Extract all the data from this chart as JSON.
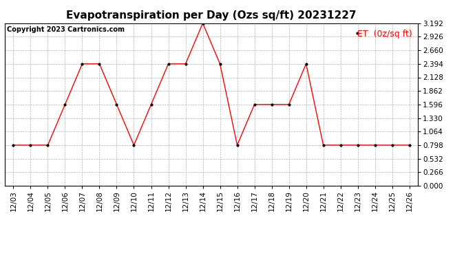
{
  "title": "Evapotranspiration per Day (Ozs sq/ft) 20231227",
  "copyright": "Copyright 2023 Cartronics.com",
  "legend_label": "ET  (0z/sq ft)",
  "dates": [
    "12/03",
    "12/04",
    "12/05",
    "12/06",
    "12/07",
    "12/08",
    "12/09",
    "12/10",
    "12/11",
    "12/12",
    "12/13",
    "12/14",
    "12/15",
    "12/16",
    "12/17",
    "12/18",
    "12/19",
    "12/20",
    "12/21",
    "12/22",
    "12/23",
    "12/24",
    "12/25",
    "12/26"
  ],
  "values": [
    0.798,
    0.798,
    0.798,
    1.596,
    2.394,
    2.394,
    1.596,
    0.798,
    1.596,
    2.394,
    2.394,
    3.192,
    2.394,
    0.798,
    1.596,
    1.596,
    1.596,
    2.394,
    0.798,
    0.798,
    0.798,
    0.798,
    0.798,
    0.798
  ],
  "line_color": "red",
  "marker_color": "black",
  "ylim": [
    0.0,
    3.192
  ],
  "yticks": [
    0.0,
    0.266,
    0.532,
    0.798,
    1.064,
    1.33,
    1.596,
    1.862,
    2.128,
    2.394,
    2.66,
    2.926,
    3.192
  ],
  "background_color": "#ffffff",
  "grid_color": "#aaaaaa",
  "title_fontsize": 11,
  "copyright_fontsize": 7,
  "legend_fontsize": 9,
  "tick_fontsize": 7.5
}
